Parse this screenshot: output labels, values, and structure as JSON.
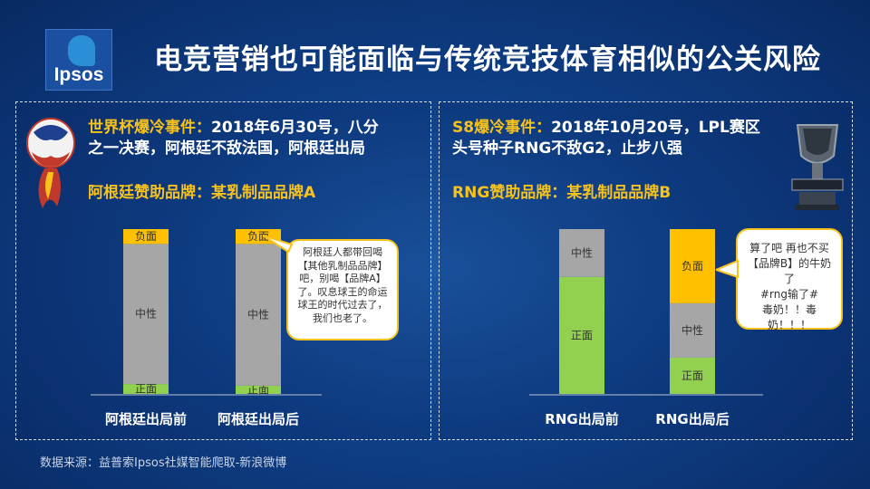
{
  "logo": {
    "text": "Ipsos"
  },
  "title": "电竞营销也可能面临与传统竞技体育相似的公关风险",
  "left_panel": {
    "event_label": "世界杯爆冷事件：",
    "event_text_1": "2018年6月30号，八分",
    "event_text_2": "之一决赛，阿根廷不敌法国，阿根廷出局",
    "sponsor": "阿根廷赞助品牌：某乳制品品牌A",
    "bubble_lines": [
      "阿根廷人都带回喝",
      "【其他乳制品品牌】",
      "吧，别喝【品牌A】",
      "了。叹息球王的命运",
      "球王的时代过去了，",
      "我们也老了。"
    ]
  },
  "right_panel": {
    "event_label": "S8爆冷事件：",
    "event_text_1": "2018年10月20号，LPL赛区",
    "event_text_2": "头号种子RNG不敌G2，止步八强",
    "sponsor": "RNG赞助品牌：某乳制品品牌B",
    "bubble_lines": [
      "算了吧 再也不买",
      "【品牌B】的牛奶了",
      "#rng输了#",
      "毒奶！！毒",
      "奶！！！"
    ]
  },
  "chart_data": [
    {
      "type": "bar",
      "stacked": true,
      "categories": [
        "阿根廷出局前",
        "阿根廷出局后"
      ],
      "series": [
        {
          "name": "正面",
          "values": [
            6,
            5
          ],
          "color": "#92d050"
        },
        {
          "name": "中性",
          "values": [
            85,
            86
          ],
          "color": "#a6a6a6"
        },
        {
          "name": "负面",
          "values": [
            9,
            9
          ],
          "color": "#ffc000"
        }
      ],
      "ylim": [
        0,
        100
      ]
    },
    {
      "type": "bar",
      "stacked": true,
      "categories": [
        "RNG出局前",
        "RNG出局后"
      ],
      "series": [
        {
          "name": "正面",
          "values": [
            71,
            22
          ],
          "color": "#92d050"
        },
        {
          "name": "中性",
          "values": [
            29,
            33
          ],
          "color": "#a6a6a6"
        },
        {
          "name": "负面",
          "values": [
            0,
            45
          ],
          "color": "#ffc000"
        }
      ],
      "ylim": [
        0,
        100
      ]
    }
  ],
  "source": "数据来源：益普索Ipsos社媒智能爬取-新浪微博"
}
